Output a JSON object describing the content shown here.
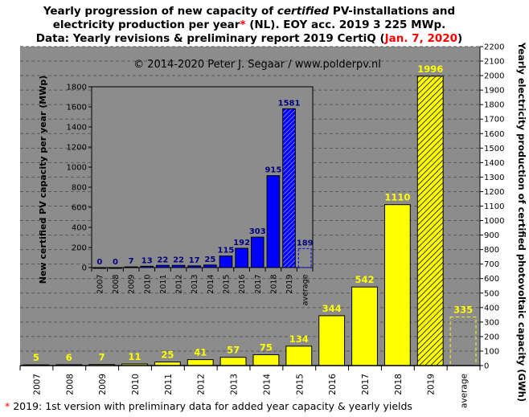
{
  "title": {
    "line1_a": "Yearly progression of new capacity of ",
    "line1_em": "certified",
    "line1_b": " PV-installations and",
    "line2_a": "electricity production per year",
    "line2_star": "*",
    "line2_b": " (NL). EOY acc. 2019 3 225 MWp.",
    "line3_a": "Data: Yearly revisions & preliminary report 2019 CertiQ (",
    "line3_date": "Jan. 7, 2020",
    "line3_b": ")"
  },
  "copyright": "© 2014-2020 Peter J. Segaar / www.polderpv.nl",
  "footnote_star": "*",
  "footnote_text": " 2019: 1st version with preliminary data for added year capacity & yearly yields",
  "colors": {
    "plot_bg": "#8c8c8c",
    "production_bar": "#ffff00",
    "capacity_bar": "#0000ff",
    "production_label": "#ffff00",
    "capacity_label": "#000080",
    "grid": "#5a5a5a"
  },
  "chart_data": [
    {
      "type": "bar",
      "categories": [
        "2007",
        "2008",
        "2009",
        "2010",
        "2011",
        "2012",
        "2013",
        "2014",
        "2015",
        "2016",
        "2017",
        "2018",
        "2019",
        "average"
      ],
      "values": [
        5,
        6,
        7,
        11,
        25,
        41,
        57,
        75,
        134,
        344,
        542,
        1110,
        1996,
        335
      ],
      "labels": [
        "5",
        "6",
        "7",
        "11",
        "25",
        "41",
        "57",
        "75",
        "134",
        "344",
        "542",
        "1110",
        "1996",
        "335"
      ],
      "ylabel": "Yearly electricity production of certified photovoltaic capacity (GWh)",
      "ylim": [
        0,
        2200
      ],
      "yticks": [
        0,
        100,
        200,
        300,
        400,
        500,
        600,
        700,
        800,
        900,
        1000,
        1100,
        1200,
        1300,
        1400,
        1500,
        1600,
        1700,
        1800,
        1900,
        2000,
        2100,
        2200
      ],
      "y_axis_side": "right",
      "grid": true,
      "hatched": [
        "2019"
      ],
      "dashed": [
        "average"
      ]
    },
    {
      "type": "bar",
      "categories": [
        "2007",
        "2008",
        "2009",
        "2010",
        "2011",
        "2012",
        "2013",
        "2014",
        "2015",
        "2016",
        "2017",
        "2018",
        "2019",
        "average"
      ],
      "values": [
        0,
        0,
        7,
        13,
        22,
        22,
        17,
        25,
        115,
        192,
        303,
        915,
        1581,
        189
      ],
      "labels": [
        "0",
        "0",
        "7",
        "13",
        "22",
        "22",
        "17",
        "25",
        "115",
        "192",
        "303",
        "915",
        "1581",
        "189"
      ],
      "ylabel": "New certified PV capacity per year (MWp)",
      "ylim": [
        0,
        1800
      ],
      "yticks": [
        0,
        200,
        400,
        600,
        800,
        1000,
        1200,
        1400,
        1600,
        1800
      ],
      "y_axis_side": "left",
      "grid": false,
      "hatched": [
        "2019"
      ],
      "dashed": [
        "average"
      ]
    }
  ]
}
